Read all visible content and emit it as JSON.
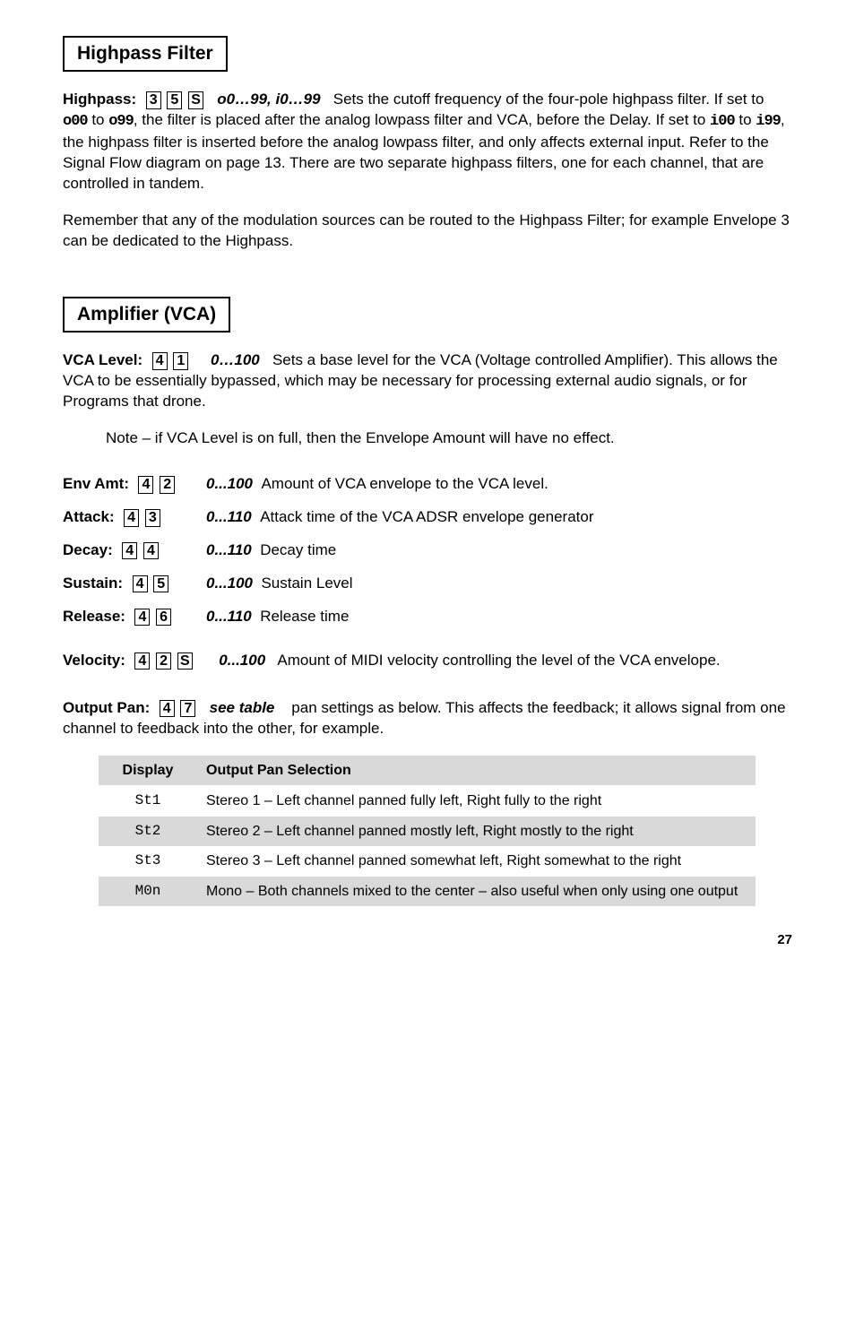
{
  "highpass": {
    "header": "Highpass Filter",
    "p1_label": "Highpass:",
    "p1_keys": [
      "3",
      "5",
      "S"
    ],
    "p1_range": "o0…99, i0…99",
    "p1_text_a": "Sets the cutoff frequency of the four-pole highpass filter. If set to ",
    "p1_seg1": "o00",
    "p1_text_b": " to ",
    "p1_seg2": "o99",
    "p1_text_c": ", the filter is placed after the analog lowpass filter and VCA, before the Delay. If set to  ",
    "p1_seg3": "i00",
    "p1_text_d": " to  ",
    "p1_seg4": "i99",
    "p1_text_e": ", the highpass filter is inserted before the analog lowpass filter, and only affects external input. Refer to the Signal Flow diagram on page 13. There are two separate highpass filters, one for each channel, that are controlled in tandem.",
    "p2": "Remember that any of the modulation sources can be routed to the Highpass Filter; for example Envelope 3 can be dedicated to the Highpass."
  },
  "vca": {
    "header": "Amplifier (VCA)",
    "level_label": "VCA Level:",
    "level_keys": [
      "4",
      "1"
    ],
    "level_range": "0…100",
    "level_text": "Sets a base level for the VCA (Voltage controlled Amplifier). This allows the VCA to be essentially bypassed, which may be necessary for processing external audio signals, or for Programs that drone.",
    "note": "Note – if VCA Level is on full, then the Envelope Amount will have no effect.",
    "rows": [
      {
        "label": "Env Amt:",
        "keys": [
          "4",
          "2"
        ],
        "range": "0...100",
        "desc": "Amount of VCA envelope to the VCA level."
      },
      {
        "label": "Attack:",
        "keys": [
          "4",
          "3"
        ],
        "range": "0...110",
        "desc": "Attack time of the VCA ADSR envelope generator"
      },
      {
        "label": "Decay:",
        "keys": [
          "4",
          "4"
        ],
        "range": "0...110",
        "desc": "Decay time"
      },
      {
        "label": "Sustain:",
        "keys": [
          "4",
          "5"
        ],
        "range": "0...100",
        "desc": "Sustain Level"
      },
      {
        "label": "Release:",
        "keys": [
          "4",
          "6"
        ],
        "range": "0...110",
        "desc": "Release time"
      }
    ],
    "vel_label": "Velocity:",
    "vel_keys": [
      "4",
      "2",
      "S"
    ],
    "vel_range": "0...100",
    "vel_text": "Amount of MIDI velocity controlling the level of the VCA envelope.",
    "pan_label": "Output Pan:",
    "pan_keys": [
      "4",
      "7"
    ],
    "pan_range": "see table",
    "pan_text": "pan settings as below. This affects the feedback; it allows signal from one channel to feedback into the other, for example."
  },
  "table": {
    "head_disp": "Display",
    "head_sel": "Output Pan Selection",
    "rows": [
      {
        "disp": "St1",
        "desc": "Stereo 1 – Left channel panned fully left, Right fully to the right",
        "grey": false
      },
      {
        "disp": "St2",
        "desc": "Stereo 2 – Left channel panned mostly left, Right mostly to the right",
        "grey": true
      },
      {
        "disp": "St3",
        "desc": "Stereo 3 – Left channel panned somewhat left, Right somewhat to the right",
        "grey": false
      },
      {
        "disp": "M0n",
        "desc": "Mono – Both channels mixed to the center – also useful when only using one output",
        "grey": true
      }
    ]
  },
  "page": "27"
}
